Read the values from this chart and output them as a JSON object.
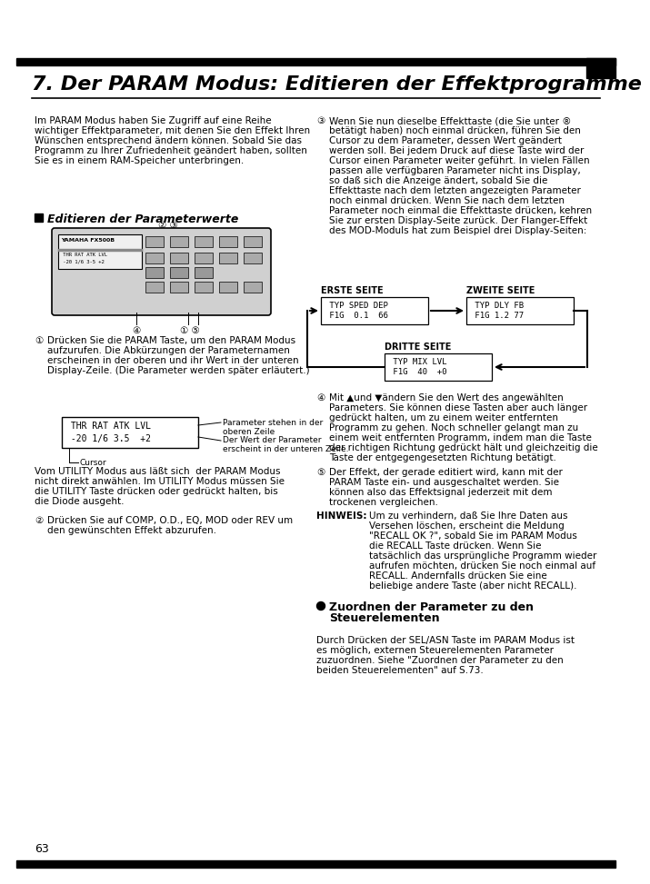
{
  "bg_color": "#ffffff",
  "title": "7. Der PARAM Modus: Editieren der Effektprogramme",
  "left_col_intro": "Im PARAM Modus haben Sie Zugriff auf eine Reihe\nwichtiger Effektparameter, mit denen Sie den Effekt Ihren\nWünschen entsprechend ändern können. Sobald Sie das\nProgramm zu Ihrer Zufriedenheit geändert haben, sollten\nSie es in einem RAM-Speicher unterbringen.",
  "section1_title": "Editieren der Parameterwerte",
  "item1_text": "Drücken Sie die PARAM Taste, um den PARAM Modus\naufzurufen. Die Abkürzungen der Parameternamen\nerscheinen in der oberen und ihr Wert in der unteren\nDisplay-Zeile. (Die Parameter werden später erläutert.)",
  "display_line1": " THR RAT ATK LVL",
  "display_line2": " -20 1/6 3.5  +2",
  "annotation1": "Parameter stehen in der\noberen Zeile",
  "annotation2": "Der Wert der Parameter\nerscheint in der unteren Zeile.",
  "cursor_label": "Cursor",
  "utility_text": "Vom UTILITY Modus aus läßt sich  der PARAM Modus\nnicht direkt anwählen. Im UTILITY Modus müssen Sie\ndie UTILITY Taste drücken oder gedrückt halten, bis\ndie Diode ausgeht.",
  "item2_text": "Drücken Sie auf COMP, O.D., EQ, MOD oder REV um\nden gewünschten Effekt abzurufen.",
  "erste_seite_label": "ERSTE SEITE",
  "zweite_seite_label": "ZWEITE SEITE",
  "dritte_seite_label": "DRITTE SEITE",
  "box1_line1": " TYP SPED DEP",
  "box1_line2": " F1G  0.1  66",
  "box2_line1": " TYP DLY FB",
  "box2_line2": " F1G 1.2 77",
  "box3_line1": " TYP MIX LVL",
  "box3_line2": " F1G  40  +0",
  "right_item3_lines": [
    "Wenn Sie nun dieselbe Effekttaste (die Sie unter ®",
    "betätigt haben) noch einmal drücken, führen Sie den",
    "Cursor zu dem Parameter, dessen Wert geändert",
    "werden soll. Bei jedem Druck auf diese Taste wird der",
    "Cursor einen Parameter weiter geführt. In vielen Fällen",
    "passen alle verfügbaren Parameter nicht ins Display,",
    "so daß sich die Anzeige ändert, sobald Sie die",
    "Effekttaste nach dem letzten angezeigten Parameter",
    "noch einmal drücken. Wenn Sie nach dem letzten",
    "Parameter noch einmal die Effekttaste drücken, kehren",
    "Sie zur ersten Display-Seite zurück. Der Flanger-Effekt",
    "des MOD-Moduls hat zum Beispiel drei Display-Seiten:"
  ],
  "right_item4_lines": [
    "Mit ▲und ▼ändern Sie den Wert des angewählten",
    "Parameters. Sie können diese Tasten aber auch länger",
    "gedrückt halten, um zu einem weiter entfernten",
    "Programm zu gehen. Noch schneller gelangt man zu",
    "einem weit entfernten Programm, indem man die Taste",
    "der richtigen Richtung gedrückt hält und gleichzeitig die",
    "Taste der entgegengesetzten Richtung betätigt."
  ],
  "right_item5_lines": [
    "Der Effekt, der gerade editiert wird, kann mit der",
    "PARAM Taste ein- und ausgeschaltet werden. Sie",
    "können also das Effektsignal jederzeit mit dem",
    "trockenen vergleichen."
  ],
  "hinweis_lines": [
    "Um zu verhindern, daß Sie Ihre Daten aus",
    "Versehen löschen, erscheint die Meldung",
    "\"RECALL OK ?\", sobald Sie im PARAM Modus",
    "die RECALL Taste drücken. Wenn Sie",
    "tatsächlich das ursprüngliche Programm wieder",
    "aufrufen möchten, drücken Sie noch einmal auf",
    "RECALL. Andernfalls drücken Sie eine",
    "beliebige andere Taste (aber nicht RECALL)."
  ],
  "section2_title_line1": "Zuordnen der Parameter zu den",
  "section2_title_line2": "Steuerelementen",
  "section2_lines": [
    "Durch Drücken der SEL/ASN Taste im PARAM Modus ist",
    "es möglich, externen Steuerelementen Parameter",
    "zuzuordnen. Siehe \"Zuordnen der Parameter zu den",
    "beiden Steuerelementen\" auf S.73."
  ],
  "page_number": "63"
}
